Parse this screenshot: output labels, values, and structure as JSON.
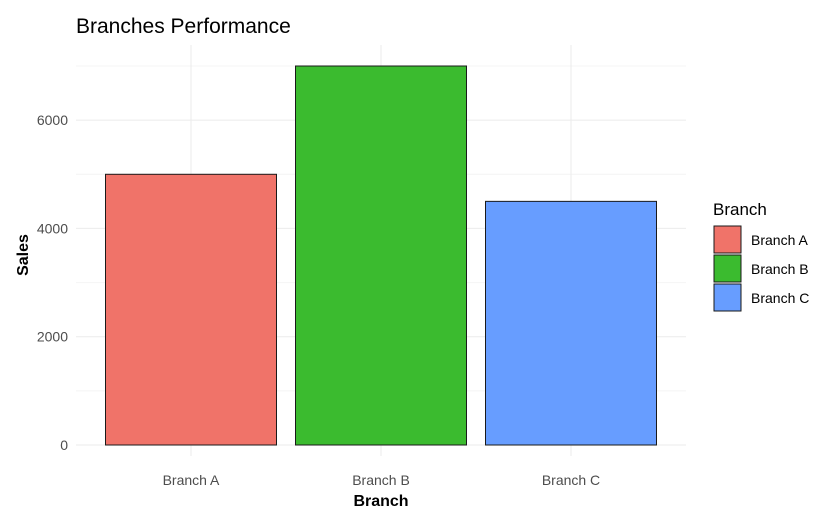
{
  "chart_data": {
    "type": "bar",
    "title": "Branches Performance",
    "xlabel": "Branch",
    "ylabel": "Sales",
    "categories": [
      "Branch A",
      "Branch B",
      "Branch C"
    ],
    "values": [
      5000,
      7000,
      4500
    ],
    "colors": [
      "#F07369",
      "#3BBB2F",
      "#679DFF"
    ],
    "ylim": [
      0,
      7000
    ],
    "yticks": [
      0,
      2000,
      4000,
      6000
    ],
    "grid": true,
    "legend": {
      "title": "Branch",
      "placement": "right",
      "entries": [
        "Branch A",
        "Branch B",
        "Branch C"
      ]
    }
  }
}
